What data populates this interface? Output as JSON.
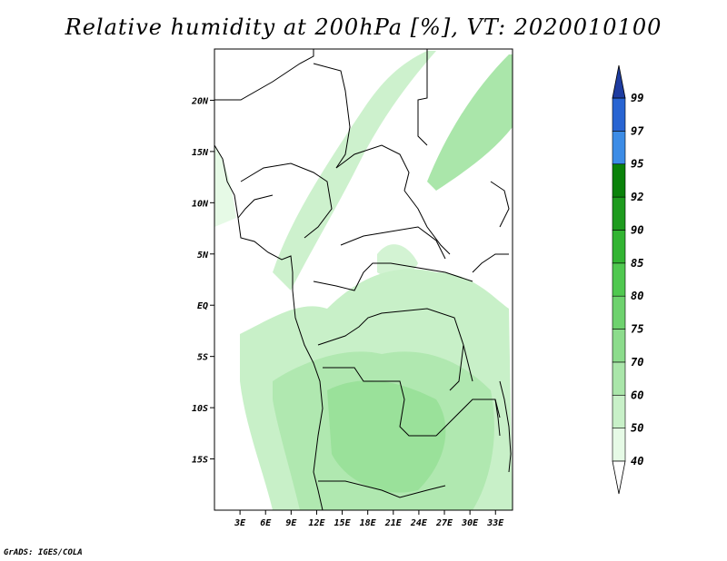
{
  "title": "Relative humidity at 200hPa [%], VT: 2020010100",
  "credit": "GrADS: IGES/COLA",
  "map": {
    "lon_range": [
      0,
      35
    ],
    "lat_range": [
      -20,
      25
    ],
    "lon_ticks": [
      {
        "value": 3,
        "label": "3E"
      },
      {
        "value": 6,
        "label": "6E"
      },
      {
        "value": 9,
        "label": "9E"
      },
      {
        "value": 12,
        "label": "12E"
      },
      {
        "value": 15,
        "label": "15E"
      },
      {
        "value": 18,
        "label": "18E"
      },
      {
        "value": 21,
        "label": "21E"
      },
      {
        "value": 24,
        "label": "24E"
      },
      {
        "value": 27,
        "label": "27E"
      },
      {
        "value": 30,
        "label": "30E"
      },
      {
        "value": 33,
        "label": "33E"
      }
    ],
    "lat_ticks": [
      {
        "value": 20,
        "label": "20N"
      },
      {
        "value": 15,
        "label": "15N"
      },
      {
        "value": 10,
        "label": "10N"
      },
      {
        "value": 5,
        "label": "5N"
      },
      {
        "value": 0,
        "label": "EQ"
      },
      {
        "value": -5,
        "label": "5S"
      },
      {
        "value": -10,
        "label": "10S"
      },
      {
        "value": -15,
        "label": "15S"
      }
    ],
    "line_color": "#000000"
  },
  "colorbar": {
    "levels": [
      "40",
      "50",
      "60",
      "70",
      "75",
      "80",
      "85",
      "90",
      "92",
      "95",
      "97",
      "99"
    ],
    "colors": [
      "#ffffff",
      "#e6fae6",
      "#c8f0c8",
      "#aae6aa",
      "#8cdc8c",
      "#6ed26e",
      "#50c850",
      "#32b432",
      "#1e9b1e",
      "#0a820a",
      "#3c8ce6",
      "#2864d2",
      "#1e3ca0"
    ]
  }
}
